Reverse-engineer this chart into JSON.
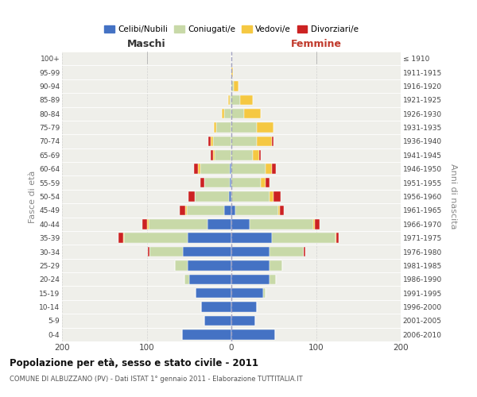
{
  "age_groups": [
    "0-4",
    "5-9",
    "10-14",
    "15-19",
    "20-24",
    "25-29",
    "30-34",
    "35-39",
    "40-44",
    "45-49",
    "50-54",
    "55-59",
    "60-64",
    "65-69",
    "70-74",
    "75-79",
    "80-84",
    "85-89",
    "90-94",
    "95-99",
    "100+"
  ],
  "birth_years": [
    "2006-2010",
    "2001-2005",
    "1996-2000",
    "1991-1995",
    "1986-1990",
    "1981-1985",
    "1976-1980",
    "1971-1975",
    "1966-1970",
    "1961-1965",
    "1956-1960",
    "1951-1955",
    "1946-1950",
    "1941-1945",
    "1936-1940",
    "1931-1935",
    "1926-1930",
    "1921-1925",
    "1916-1920",
    "1911-1915",
    "≤ 1910"
  ],
  "male_celibe": [
    58,
    32,
    36,
    42,
    50,
    52,
    57,
    52,
    28,
    8,
    3,
    2,
    2,
    0,
    0,
    0,
    0,
    0,
    0,
    0,
    0
  ],
  "male_coniugato": [
    0,
    0,
    0,
    0,
    5,
    15,
    40,
    75,
    70,
    45,
    40,
    30,
    35,
    20,
    22,
    18,
    8,
    2,
    0,
    0,
    0
  ],
  "male_vedovo": [
    0,
    0,
    0,
    0,
    0,
    0,
    0,
    1,
    2,
    1,
    0,
    0,
    2,
    2,
    2,
    3,
    3,
    2,
    0,
    0,
    0
  ],
  "male_divorziato": [
    0,
    0,
    0,
    0,
    0,
    0,
    2,
    5,
    5,
    7,
    8,
    5,
    5,
    2,
    3,
    0,
    0,
    0,
    0,
    0,
    0
  ],
  "female_celibe": [
    52,
    28,
    30,
    38,
    45,
    45,
    45,
    48,
    22,
    5,
    0,
    0,
    0,
    0,
    0,
    0,
    0,
    0,
    0,
    0,
    0
  ],
  "female_coniugata": [
    0,
    0,
    0,
    2,
    8,
    15,
    40,
    75,
    75,
    50,
    45,
    35,
    40,
    25,
    30,
    30,
    15,
    10,
    3,
    0,
    0
  ],
  "female_vedova": [
    0,
    0,
    0,
    0,
    0,
    0,
    0,
    1,
    2,
    2,
    5,
    5,
    8,
    8,
    18,
    20,
    20,
    15,
    5,
    2,
    0
  ],
  "female_divorziata": [
    0,
    0,
    0,
    0,
    0,
    0,
    2,
    3,
    5,
    5,
    8,
    5,
    5,
    2,
    2,
    0,
    0,
    0,
    0,
    0,
    0
  ],
  "colors": {
    "celibe": "#4472c4",
    "coniugato": "#c8d9a8",
    "vedovo": "#f5c842",
    "divorziato": "#cc2222"
  },
  "title": "Popolazione per età, sesso e stato civile - 2011",
  "subtitle": "COMUNE DI ALBUZZANO (PV) - Dati ISTAT 1° gennaio 2011 - Elaborazione TUTTITALIA.IT",
  "label_maschi": "Maschi",
  "label_femmine": "Femmine",
  "ylabel_left": "Fasce di età",
  "ylabel_right": "Anni di nascita",
  "legend_labels": [
    "Celibi/Nubili",
    "Coniugati/e",
    "Vedovi/e",
    "Divorziari/e"
  ],
  "xlim": 200,
  "bg_color": "#ffffff",
  "plot_bg": "#efefea"
}
